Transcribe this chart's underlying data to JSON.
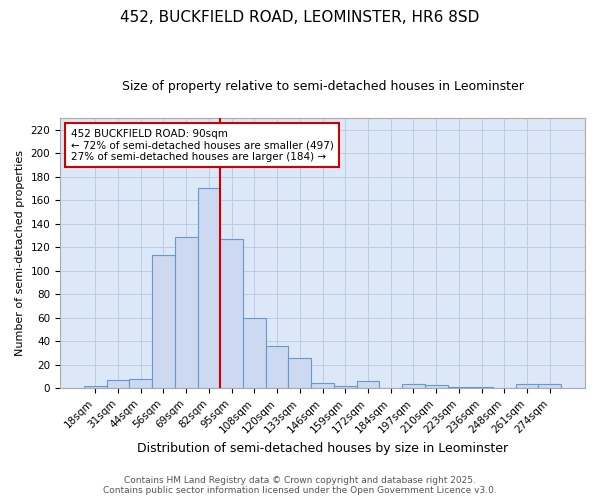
{
  "title": "452, BUCKFIELD ROAD, LEOMINSTER, HR6 8SD",
  "subtitle": "Size of property relative to semi-detached houses in Leominster",
  "xlabel": "Distribution of semi-detached houses by size in Leominster",
  "ylabel": "Number of semi-detached properties",
  "bar_labels": [
    "18sqm",
    "31sqm",
    "44sqm",
    "56sqm",
    "69sqm",
    "82sqm",
    "95sqm",
    "108sqm",
    "120sqm",
    "133sqm",
    "146sqm",
    "159sqm",
    "172sqm",
    "184sqm",
    "197sqm",
    "210sqm",
    "223sqm",
    "236sqm",
    "248sqm",
    "261sqm",
    "274sqm"
  ],
  "bar_values": [
    2,
    7,
    8,
    113,
    129,
    170,
    127,
    60,
    36,
    26,
    5,
    2,
    6,
    0,
    4,
    3,
    1,
    1,
    0,
    4,
    4
  ],
  "bar_color": "#ccd9f0",
  "bar_edge_color": "#6699cc",
  "vline_color": "#cc0000",
  "vline_pos": 5.5,
  "annotation_text": "452 BUCKFIELD ROAD: 90sqm\n← 72% of semi-detached houses are smaller (497)\n27% of semi-detached houses are larger (184) →",
  "annotation_box_color": "#ffffff",
  "annotation_box_edge": "#cc0000",
  "ylim": [
    0,
    230
  ],
  "yticks": [
    0,
    20,
    40,
    60,
    80,
    100,
    120,
    140,
    160,
    180,
    200,
    220
  ],
  "footnote": "Contains HM Land Registry data © Crown copyright and database right 2025.\nContains public sector information licensed under the Open Government Licence v3.0.",
  "bg_color": "#ffffff",
  "plot_bg_color": "#dce8f8",
  "grid_color": "#b8c8e0",
  "title_fontsize": 11,
  "subtitle_fontsize": 9,
  "xlabel_fontsize": 9,
  "ylabel_fontsize": 8,
  "tick_fontsize": 7.5,
  "annotation_fontsize": 7.5,
  "footnote_fontsize": 6.5
}
